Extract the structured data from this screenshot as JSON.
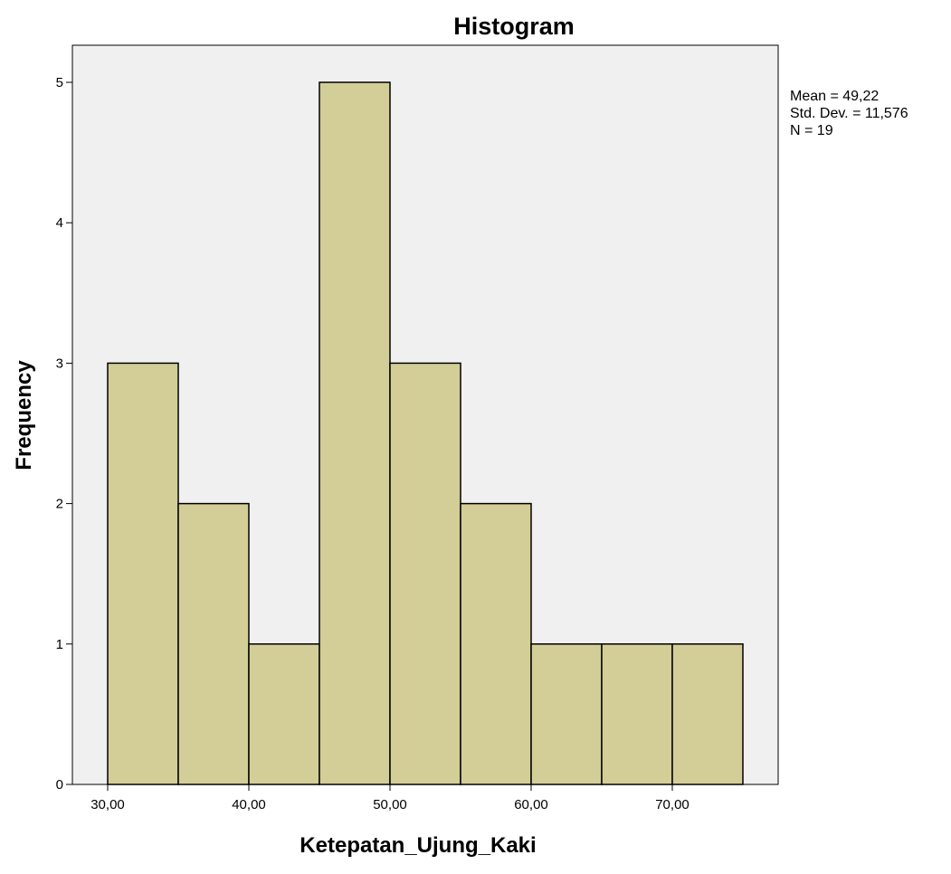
{
  "chart_data": {
    "type": "bar",
    "title": "Histogram",
    "xlabel": "Ketepatan_Ujung_Kaki",
    "ylabel": "Frequency",
    "bins": [
      {
        "start": 30,
        "end": 35,
        "count": 3
      },
      {
        "start": 35,
        "end": 40,
        "count": 2
      },
      {
        "start": 40,
        "end": 45,
        "count": 1
      },
      {
        "start": 45,
        "end": 50,
        "count": 5
      },
      {
        "start": 50,
        "end": 55,
        "count": 3
      },
      {
        "start": 55,
        "end": 60,
        "count": 2
      },
      {
        "start": 60,
        "end": 65,
        "count": 1
      },
      {
        "start": 65,
        "end": 70,
        "count": 1
      },
      {
        "start": 70,
        "end": 75,
        "count": 1
      }
    ],
    "xlim": [
      27.5,
      77.5
    ],
    "ylim": [
      0,
      5.5
    ],
    "xticks": [
      30,
      40,
      50,
      60,
      70
    ],
    "xtick_labels": [
      "30,00",
      "40,00",
      "50,00",
      "60,00",
      "70,00"
    ],
    "yticks": [
      0,
      1,
      2,
      3,
      4,
      5
    ],
    "ytick_labels": [
      "0",
      "1",
      "2",
      "3",
      "4",
      "5"
    ],
    "grid": false,
    "colors": {
      "bar_fill": "#d3ce97",
      "bar_stroke": "#000000",
      "plot_bg": "#f0f0f0"
    },
    "stats": {
      "mean": "Mean = 49,22",
      "std": "Std. Dev. = 11,576",
      "n": "N = 19"
    }
  }
}
